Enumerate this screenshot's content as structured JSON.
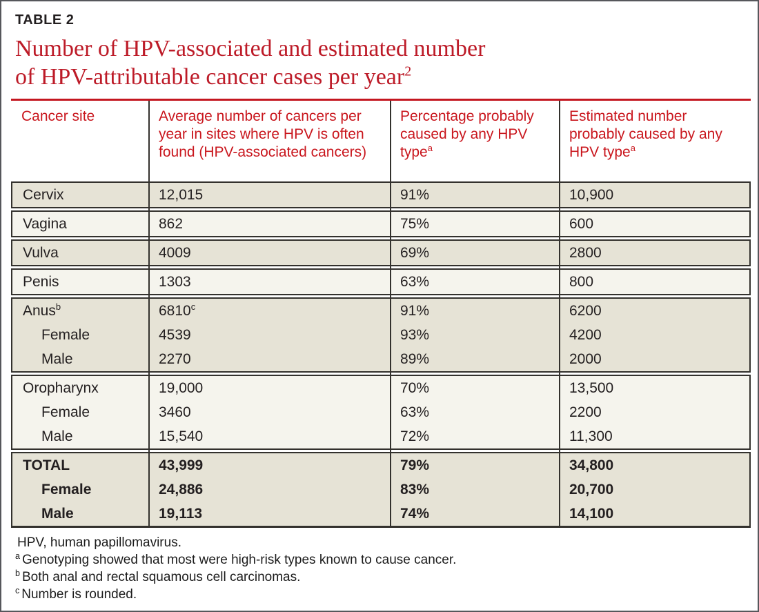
{
  "kicker": "TABLE 2",
  "title": {
    "line1": "Number of HPV-associated and estimated number",
    "line2": "of HPV-attributable cancer cases per year",
    "ref_sup": "2"
  },
  "columns": [
    {
      "label": "Cancer site"
    },
    {
      "label": "Average number of cancers per year in sites where HPV is often found (HPV-associated cancers)"
    },
    {
      "label": "Percentage probably caused by any HPV type",
      "sup": "a"
    },
    {
      "label": "Estimated number probably caused by any HPV type",
      "sup": "a"
    }
  ],
  "blocks": [
    {
      "shade": "dark",
      "rows": [
        {
          "site": "Cervix",
          "avg": "12,015",
          "pct": "91%",
          "est": "10,900"
        }
      ]
    },
    {
      "shade": "light",
      "rows": [
        {
          "site": "Vagina",
          "avg": "862",
          "pct": "75%",
          "est": "600"
        }
      ]
    },
    {
      "shade": "dark",
      "rows": [
        {
          "site": "Vulva",
          "avg": "4009",
          "pct": "69%",
          "est": "2800"
        }
      ]
    },
    {
      "shade": "light",
      "rows": [
        {
          "site": "Penis",
          "avg": "1303",
          "pct": "63%",
          "est": "800"
        }
      ]
    },
    {
      "shade": "dark",
      "rows": [
        {
          "site": "Anus",
          "site_sup": "b",
          "avg": "6810",
          "avg_sup": "c",
          "pct": "91%",
          "est": "6200"
        },
        {
          "site": "Female",
          "avg": "4539",
          "pct": "93%",
          "est": "4200"
        },
        {
          "site": "Male",
          "avg": "2270",
          "pct": "89%",
          "est": "2000"
        }
      ]
    },
    {
      "shade": "light",
      "rows": [
        {
          "site": "Oropharynx",
          "avg": "19,000",
          "pct": "70%",
          "est": "13,500"
        },
        {
          "site": "Female",
          "avg": "3460",
          "pct": "63%",
          "est": "2200"
        },
        {
          "site": "Male",
          "avg": "15,540",
          "pct": "72%",
          "est": "11,300"
        }
      ]
    },
    {
      "shade": "dark",
      "bold": true,
      "rows": [
        {
          "site": "TOTAL",
          "avg": "43,999",
          "pct": "79%",
          "est": "34,800"
        },
        {
          "site": "Female",
          "avg": "24,886",
          "pct": "83%",
          "est": "20,700"
        },
        {
          "site": "Male",
          "avg": "19,113",
          "pct": "74%",
          "est": "14,100"
        }
      ]
    }
  ],
  "footnotes": [
    {
      "text": "HPV, human papillomavirus."
    },
    {
      "sup": "a",
      "text": "Genotyping showed that most were high-risk types known to cause cancer."
    },
    {
      "sup": "b",
      "text": "Both anal and rectal squamous cell carcinomas."
    },
    {
      "sup": "c",
      "text": "Number is rounded."
    }
  ],
  "colors": {
    "accent_red": "#c4161f",
    "title_red": "#bd1b28",
    "row_shade_dark": "#e6e3d6",
    "row_shade_light": "#f5f4ed",
    "border_dark": "#33312d",
    "outer_border": "#56575b",
    "body_text": "#231f20"
  }
}
